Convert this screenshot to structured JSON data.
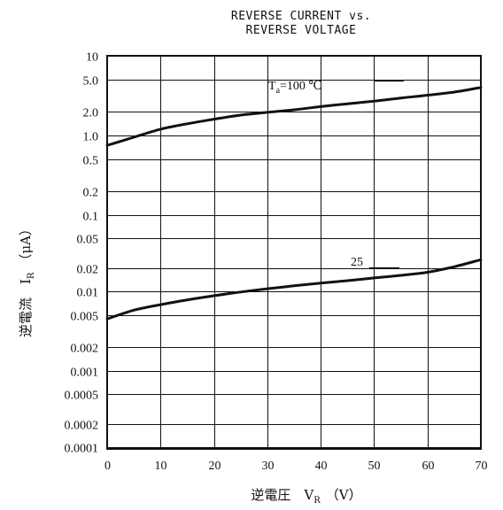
{
  "chart_data": {
    "type": "line",
    "title_lines": [
      "REVERSE CURRENT vs.",
      "REVERSE VOLTAGE"
    ],
    "xlabel": "逆電圧　V",
    "xlabel_sub": "R",
    "xlabel_unit": "（V）",
    "ylabel": "逆電流　I",
    "ylabel_sub": "R",
    "ylabel_unit": "（μA）",
    "xlim": [
      0,
      70
    ],
    "ylim": [
      0.0001,
      10
    ],
    "y_scale": "log",
    "grid": true,
    "x_ticks": [
      0,
      10,
      20,
      30,
      40,
      50,
      60,
      70
    ],
    "x_tick_labels": [
      "0",
      "10",
      "20",
      "30",
      "40",
      "50",
      "60",
      "70"
    ],
    "y_ticks": [
      10,
      5,
      2,
      1,
      0.5,
      0.2,
      0.1,
      0.05,
      0.02,
      0.01,
      0.005,
      0.002,
      0.001,
      0.0005,
      0.0002,
      0.0001
    ],
    "y_tick_labels": [
      "10",
      "5.0",
      "2.0",
      "1.0",
      "0.5",
      "0.2",
      "0.1",
      "0.05",
      "0.02",
      "0.01",
      "0.005",
      "0.002",
      "0.001",
      "0.0005",
      "0.0002",
      "0.0001"
    ],
    "series": [
      {
        "name": "T",
        "name_sub": "a",
        "name_suffix": "=100 ℃",
        "x": [
          0,
          5,
          10,
          15,
          20,
          25,
          30,
          35,
          40,
          45,
          50,
          55,
          60,
          65,
          70
        ],
        "values": [
          0.75,
          0.95,
          1.2,
          1.4,
          1.6,
          1.8,
          1.95,
          2.1,
          2.3,
          2.5,
          2.7,
          2.95,
          3.2,
          3.5,
          4.0
        ]
      },
      {
        "name": "25",
        "x": [
          0,
          5,
          10,
          15,
          20,
          25,
          30,
          35,
          40,
          45,
          50,
          55,
          60,
          65,
          70
        ],
        "values": [
          0.0045,
          0.0058,
          0.0068,
          0.0078,
          0.0088,
          0.0098,
          0.0108,
          0.0118,
          0.0128,
          0.0138,
          0.015,
          0.0162,
          0.0178,
          0.021,
          0.026
        ]
      }
    ]
  }
}
